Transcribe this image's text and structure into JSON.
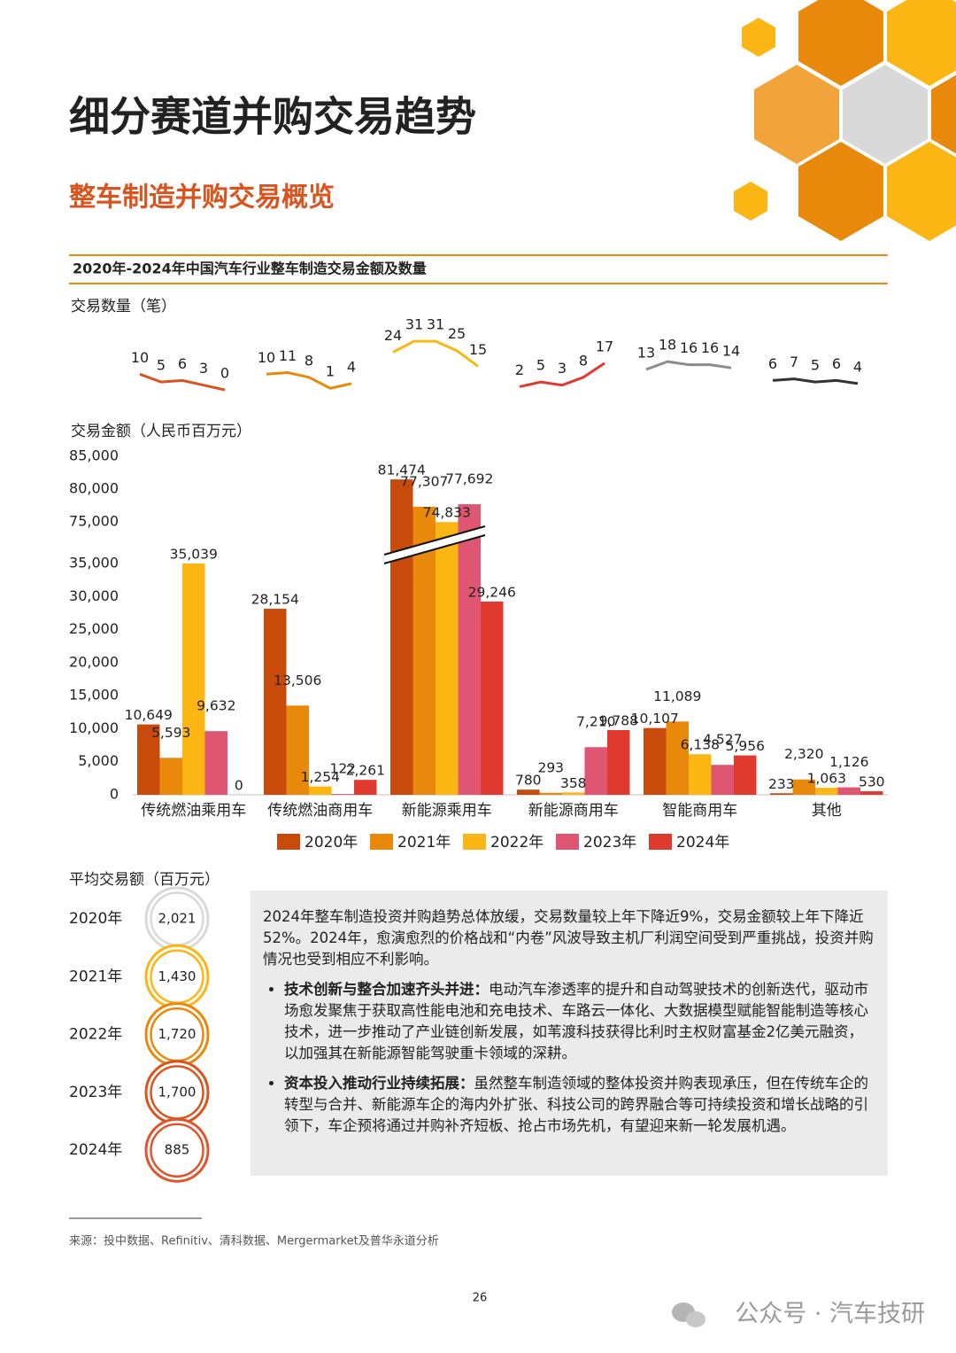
{
  "header": {
    "title": "细分赛道并购交易趋势",
    "subtitle": "整车制造并购交易概览"
  },
  "figure_title": "2020年-2024年中国汽车行业整车制造交易金额及数量",
  "chart_data": [
    {
      "type": "line",
      "y_label": "交易数量（笔）",
      "ylim": [
        0,
        35
      ],
      "series": [
        {
          "color": "#d9541e",
          "values": [
            10,
            5,
            6,
            3,
            0
          ]
        },
        {
          "color": "#e8890c",
          "values": [
            10,
            11,
            8,
            1,
            4
          ]
        },
        {
          "color": "#fbb614",
          "values": [
            24,
            31,
            31,
            25,
            15
          ]
        },
        {
          "color": "#e03a2e",
          "values": [
            2,
            5,
            3,
            8,
            17
          ]
        },
        {
          "color": "#8c8c8c",
          "values": [
            13,
            18,
            16,
            16,
            14
          ]
        },
        {
          "color": "#333333",
          "values": [
            6,
            7,
            5,
            6,
            4
          ]
        }
      ]
    },
    {
      "type": "bar",
      "y_label": "交易金额（人民币百万元）",
      "categories": [
        "传统燃油乘用车",
        "传统燃油商用车",
        "新能源乘用车",
        "新能源商用车",
        "智能商用车",
        "其他"
      ],
      "series": [
        {
          "name": "2020年",
          "color": "#c84b0c",
          "values": [
            10649,
            28154,
            81474,
            780,
            10107,
            233
          ],
          "value_labels": [
            "10,649",
            "28,154",
            "81,474",
            "780",
            "10,107",
            "233"
          ]
        },
        {
          "name": "2021年",
          "color": "#e8890c",
          "values": [
            5593,
            13506,
            77307,
            293,
            11089,
            2320
          ],
          "value_labels": [
            "5,593",
            "13,506",
            "77,307",
            "293",
            "11,089",
            "2,320"
          ]
        },
        {
          "name": "2022年",
          "color": "#fbb614",
          "values": [
            35039,
            1254,
            74833,
            358,
            6138,
            1063
          ],
          "value_labels": [
            "35,039",
            "1,254",
            "74,833",
            "358",
            "6,138",
            "1,063"
          ]
        },
        {
          "name": "2023年",
          "color": "#de5671",
          "values": [
            9632,
            122,
            77692,
            7210,
            4527,
            1126
          ],
          "value_labels": [
            "9,632",
            "122",
            "77,692",
            "7,210",
            "4,527",
            "1,126"
          ]
        },
        {
          "name": "2024年",
          "color": "#e03a2e",
          "values": [
            0,
            2261,
            29246,
            9788,
            5956,
            530
          ],
          "value_labels": [
            "0",
            "2,261",
            "29,246",
            "9,788",
            "5,956",
            "530"
          ]
        }
      ],
      "ylim": [
        0,
        85000
      ],
      "ybreak": [
        35000,
        75000
      ],
      "yticks": [
        0,
        {
          "value": 5000,
          "label": "5,000"
        },
        {
          "value": 10000,
          "label": "10,000"
        },
        {
          "value": 15000,
          "label": "15,000"
        },
        {
          "value": 20000,
          "label": "20,000"
        },
        {
          "value": 25000,
          "label": "25,000"
        },
        {
          "value": 30000,
          "label": "30,000"
        },
        {
          "value": 35000,
          "label": "35,000"
        },
        {
          "value": 75000,
          "label": "75,000"
        },
        {
          "value": 80000,
          "label": "80,000"
        },
        {
          "value": 85000,
          "label": "85,000"
        }
      ],
      "legend": "bottom"
    },
    {
      "type": "ring",
      "title": "平均交易额（百万元）",
      "categories": [
        "2020年",
        "2021年",
        "2022年",
        "2023年",
        "2024年"
      ],
      "values": [
        2021,
        1430,
        1720,
        1700,
        885
      ],
      "value_labels": [
        "2,021",
        "1,430",
        "1,720",
        "1,700",
        "885"
      ],
      "colors": [
        "#d9d9d9",
        "#fbb614",
        "#e8890c",
        "#d9541e",
        "#e0552e"
      ]
    }
  ],
  "text": {
    "intro": "2024年整车制造投资并购趋势总体放缓，交易数量较上年下降近9%，交易金额较上年下降近52%。2024年，愈演愈烈的价格战和“内卷”风波导致主机厂利润空间受到严重挑战，投资并购情况也受到相应不利影响。",
    "bullets": [
      {
        "lead": "技术创新与整合加速齐头并进：",
        "body": "电动汽车渗透率的提升和自动驾驶技术的创新迭代，驱动市场愈发聚焦于获取高性能电池和充电技术、车路云一体化、大数据模型赋能智能制造等核心技术，进一步推动了产业链创新发展，如苇渡科技获得比利时主权财富基金2亿美元融资，以加强其在新能源智能驾驶重卡领域的深耕。"
      },
      {
        "lead": "资本投入推动行业持续拓展：",
        "body": "虽然整车制造领域的整体投资并购表现承压，但在传统车企的转型与合并、新能源车企的海内外扩张、科技公司的跨界融合等可持续投资和增长战略的引领下，车企预将通过并购补齐短板、抢占市场先机，有望迎来新一轮发展机遇。"
      }
    ]
  },
  "footnote": "来源：投中数据、Refinitiv、清科数据、Mergermarket及普华永道分析",
  "page_number": "26",
  "watermark": "公众号 · 汽车技研"
}
